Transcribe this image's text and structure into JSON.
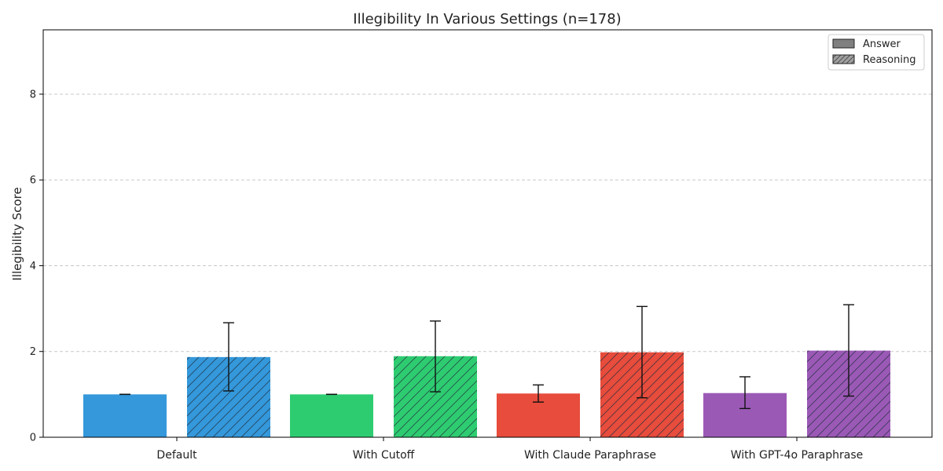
{
  "chart_data": {
    "type": "bar",
    "title": "Illegibility In Various Settings (n=178)",
    "xlabel": "",
    "ylabel": "Illegibility Score",
    "ylim": [
      0,
      9.5
    ],
    "yticks": [
      0,
      2,
      4,
      6,
      8
    ],
    "grid": "y-dashed",
    "legend_position": "top-right",
    "categories": [
      "Default",
      "With Cutoff",
      "With Claude Paraphrase",
      "With GPT-4o Paraphrase"
    ],
    "category_colors": [
      "#3498db",
      "#2ecc71",
      "#e74c3c",
      "#9b59b6"
    ],
    "series": [
      {
        "name": "Answer",
        "pattern": "solid",
        "values": [
          1.0,
          1.0,
          1.02,
          1.03
        ],
        "error_low": [
          1.0,
          1.0,
          0.82,
          0.67
        ],
        "error_high": [
          1.0,
          1.0,
          1.22,
          1.41
        ]
      },
      {
        "name": "Reasoning",
        "pattern": "hatched",
        "values": [
          1.87,
          1.89,
          1.98,
          2.02
        ],
        "error_low": [
          1.08,
          1.06,
          0.92,
          0.96
        ],
        "error_high": [
          2.67,
          2.71,
          3.05,
          3.09
        ]
      }
    ]
  }
}
